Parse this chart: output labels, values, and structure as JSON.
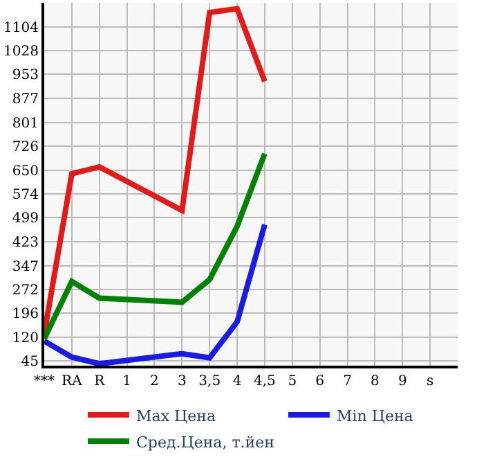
{
  "chart_data": {
    "type": "line",
    "categories": [
      "***",
      "RA",
      "R",
      "1",
      "2",
      "3",
      "3,5",
      "4",
      "4,5",
      "5",
      "6",
      "7",
      "8",
      "9",
      "s"
    ],
    "series": [
      {
        "name": "Max Цена",
        "color": "#dd1c1c",
        "values": [
          131,
          638,
          660,
          null,
          null,
          522,
          1149,
          1161,
          931,
          null,
          null,
          null,
          null,
          null,
          null
        ]
      },
      {
        "name": "Min Цена",
        "color": "#1c1cdd",
        "values": [
          108,
          57,
          36,
          null,
          null,
          68,
          55,
          169,
          477,
          null,
          null,
          null,
          null,
          null,
          null
        ]
      },
      {
        "name": "Сред.Цена, т.йен",
        "color": "#008000",
        "values": [
          115,
          297,
          244,
          null,
          null,
          231,
          303,
          472,
          702,
          null,
          null,
          null,
          null,
          null,
          null
        ]
      }
    ],
    "ylim": [
      30,
      1180
    ],
    "yticks": [
      45,
      120,
      196,
      272,
      347,
      423,
      499,
      574,
      650,
      726,
      801,
      877,
      953,
      1028,
      1104
    ],
    "grid": true,
    "legend": "bottom",
    "marker": "none",
    "line_style": "solid"
  }
}
